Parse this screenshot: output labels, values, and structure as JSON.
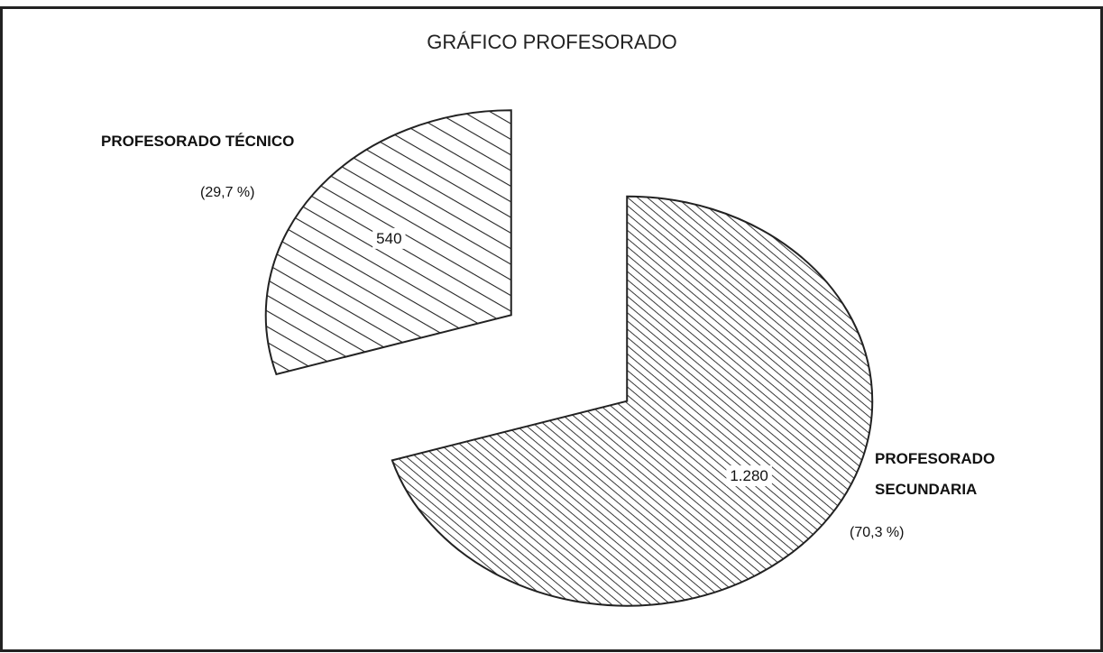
{
  "chart_data": {
    "type": "pie",
    "title": "GRÁFICO PROFESORADO",
    "categories": [
      "PROFESORADO TÉCNICO",
      "PROFESORADO SECUNDARIA"
    ],
    "values": [
      540,
      1280
    ],
    "value_labels": [
      "540",
      "1.280"
    ],
    "percentages": [
      29.7,
      70.3
    ],
    "percentage_labels": [
      "(29,7 %)",
      "(70,3 %)"
    ],
    "exploded": true
  }
}
